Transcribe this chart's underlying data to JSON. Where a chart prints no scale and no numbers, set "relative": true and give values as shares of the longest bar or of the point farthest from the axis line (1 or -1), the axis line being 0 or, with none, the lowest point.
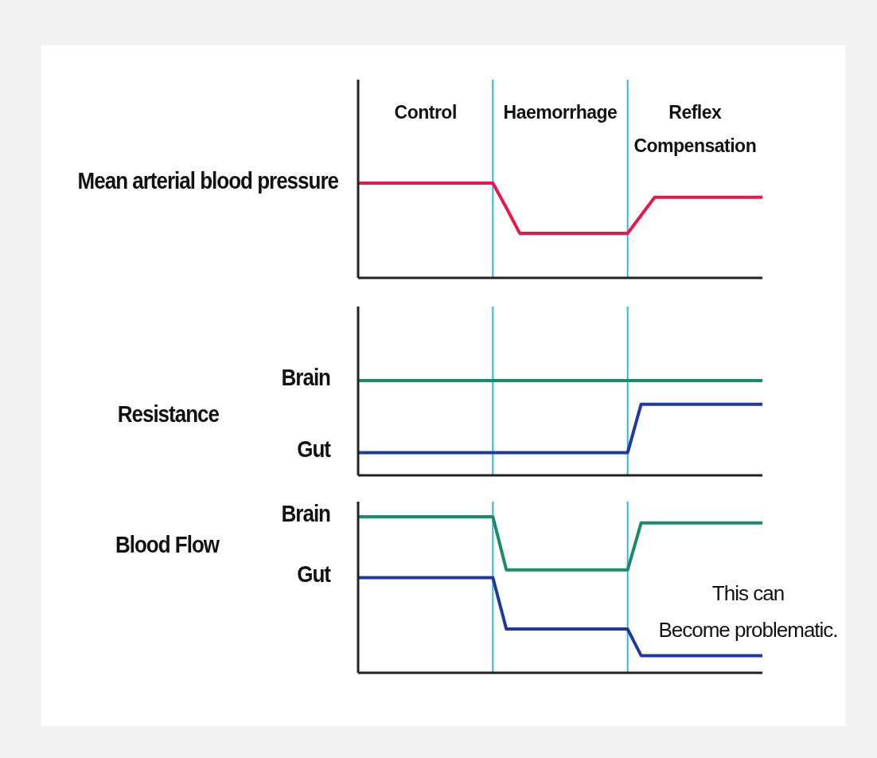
{
  "chart_data": [
    {
      "type": "line",
      "relative": true,
      "ylabel": "Mean arterial blood pressure",
      "categories": [
        null,
        null,
        null,
        null,
        null,
        null,
        null,
        null,
        null,
        null,
        null,
        null,
        null,
        null,
        null,
        null,
        null,
        null,
        null,
        null,
        null,
        null,
        null,
        null,
        null,
        null,
        null,
        null,
        null,
        null,
        null
      ],
      "annotations": [
        "Control",
        "Haemorrhage",
        "Reflex Compensation"
      ],
      "series": [
        {
          "color": "#e8174a",
          "values": [
            1,
            1,
            1,
            1,
            1,
            1,
            1,
            1,
            1,
            1,
            1,
            0.74,
            0.47,
            0.47,
            0.47,
            0.47,
            0.47,
            0.47,
            0.47,
            0.47,
            0.47,
            0.66,
            0.85,
            0.85,
            0.85,
            0.85,
            0.85,
            0.85,
            0.85,
            0.85,
            0.85
          ]
        }
      ]
    },
    {
      "type": "line",
      "relative": true,
      "ylabel": "Resistance",
      "categories": [
        null,
        null,
        null,
        null,
        null,
        null,
        null,
        null,
        null,
        null,
        null,
        null,
        null,
        null,
        null,
        null,
        null,
        null,
        null,
        null,
        null,
        null,
        null,
        null,
        null,
        null,
        null,
        null,
        null,
        null,
        null
      ],
      "series": [
        {
          "name": "Brain",
          "color": "#1a8a6a",
          "values": [
            1,
            1,
            1,
            1,
            1,
            1,
            1,
            1,
            1,
            1,
            1,
            1,
            1,
            1,
            1,
            1,
            1,
            1,
            1,
            1,
            1,
            1,
            1,
            1,
            1,
            1,
            1,
            1,
            1,
            1,
            1
          ]
        },
        {
          "name": "Gut",
          "color": "#1f3a9a",
          "values": [
            0.24,
            0.24,
            0.24,
            0.24,
            0.24,
            0.24,
            0.24,
            0.24,
            0.24,
            0.24,
            0.24,
            0.24,
            0.24,
            0.24,
            0.24,
            0.24,
            0.24,
            0.24,
            0.24,
            0.24,
            0.24,
            0.75,
            0.75,
            0.75,
            0.75,
            0.75,
            0.75,
            0.75,
            0.75,
            0.75,
            0.75
          ]
        }
      ]
    },
    {
      "type": "line",
      "relative": true,
      "ylabel": "Blood Flow",
      "categories": [
        null,
        null,
        null,
        null,
        null,
        null,
        null,
        null,
        null,
        null,
        null,
        null,
        null,
        null,
        null,
        null,
        null,
        null,
        null,
        null,
        null,
        null,
        null,
        null,
        null,
        null,
        null,
        null,
        null,
        null,
        null
      ],
      "annotations": [
        "This can\nBecome problematic."
      ],
      "series": [
        {
          "name": "Brain",
          "color": "#1a8a6a",
          "values": [
            1,
            1,
            1,
            1,
            1,
            1,
            1,
            1,
            1,
            1,
            1,
            0.66,
            0.66,
            0.66,
            0.66,
            0.66,
            0.66,
            0.66,
            0.66,
            0.66,
            0.66,
            0.96,
            0.96,
            0.96,
            0.96,
            0.96,
            0.96,
            0.96,
            0.96,
            0.96,
            0.96
          ]
        },
        {
          "name": "Gut",
          "color": "#1f3a9a",
          "values": [
            0.61,
            0.61,
            0.61,
            0.61,
            0.61,
            0.61,
            0.61,
            0.61,
            0.61,
            0.61,
            0.61,
            0.28,
            0.28,
            0.28,
            0.28,
            0.28,
            0.28,
            0.28,
            0.28,
            0.28,
            0.28,
            0.11,
            0.11,
            0.11,
            0.11,
            0.11,
            0.11,
            0.11,
            0.11,
            0.11,
            0.11
          ]
        }
      ]
    }
  ]
}
